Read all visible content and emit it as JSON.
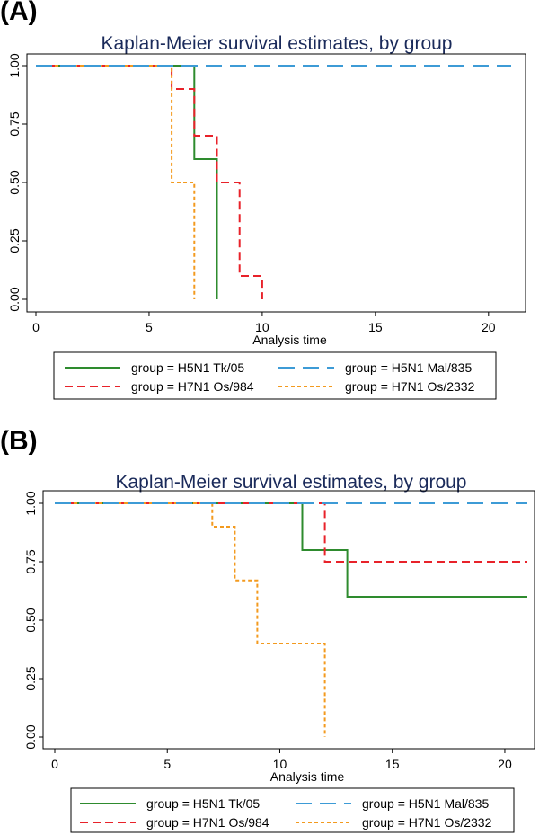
{
  "panels": [
    {
      "label": "(A)"
    },
    {
      "label": "(B)"
    }
  ],
  "chart_data": [
    {
      "type": "line",
      "step": true,
      "title": "Kaplan-Meier survival estimates, by group",
      "xlabel": "Analysis time",
      "ylabel": "",
      "xlim": [
        0,
        21
      ],
      "ylim": [
        0,
        1
      ],
      "xticks": [
        0,
        5,
        10,
        15,
        20
      ],
      "yticks": [
        "0.00",
        "0.25",
        "0.50",
        "0.75",
        "1.00"
      ],
      "legend": [
        "group = H5N1 Tk/05",
        "group = H5N1 Mal/835",
        "group = H7N1 Os/984",
        "group = H7N1 Os/2332"
      ],
      "series": [
        {
          "name": "group = H5N1 Tk/05",
          "color": "#2e8b2e",
          "dash": "solid",
          "points": [
            [
              0,
              1
            ],
            [
              7,
              1
            ],
            [
              7,
              0.6
            ],
            [
              8,
              0.6
            ],
            [
              8,
              0
            ]
          ]
        },
        {
          "name": "group = H5N1 Mal/835",
          "color": "#3d9bd6",
          "dash": "long",
          "points": [
            [
              0,
              1
            ],
            [
              21,
              1
            ]
          ]
        },
        {
          "name": "group = H7N1 Os/984",
          "color": "#e8222a",
          "dash": "medium",
          "points": [
            [
              0,
              1
            ],
            [
              6,
              1
            ],
            [
              6,
              0.9
            ],
            [
              7,
              0.9
            ],
            [
              7,
              0.7
            ],
            [
              8,
              0.7
            ],
            [
              8,
              0.5
            ],
            [
              9,
              0.5
            ],
            [
              9,
              0.1
            ],
            [
              10,
              0.1
            ],
            [
              10,
              0
            ]
          ]
        },
        {
          "name": "group = H7N1 Os/2332",
          "color": "#f39a1e",
          "dash": "short",
          "points": [
            [
              0,
              1
            ],
            [
              6,
              1
            ],
            [
              6,
              0.5
            ],
            [
              7,
              0.5
            ],
            [
              7,
              0
            ]
          ]
        }
      ]
    },
    {
      "type": "line",
      "step": true,
      "title": "Kaplan-Meier survival estimates, by group",
      "xlabel": "Analysis time",
      "ylabel": "",
      "xlim": [
        0,
        21
      ],
      "ylim": [
        0,
        1
      ],
      "xticks": [
        0,
        5,
        10,
        15,
        20
      ],
      "yticks": [
        "0.00",
        "0.25",
        "0.50",
        "0.75",
        "1.00"
      ],
      "legend": [
        "group = H5N1 Tk/05",
        "group = H5N1 Mal/835",
        "group = H7N1 Os/984",
        "group = H7N1 Os/2332"
      ],
      "series": [
        {
          "name": "group = H5N1 Tk/05",
          "color": "#2e8b2e",
          "dash": "solid",
          "points": [
            [
              0,
              1
            ],
            [
              11,
              1
            ],
            [
              11,
              0.8
            ],
            [
              13,
              0.8
            ],
            [
              13,
              0.6
            ],
            [
              21,
              0.6
            ]
          ]
        },
        {
          "name": "group = H5N1 Mal/835",
          "color": "#3d9bd6",
          "dash": "long",
          "points": [
            [
              0,
              1
            ],
            [
              21,
              1
            ]
          ]
        },
        {
          "name": "group = H7N1 Os/984",
          "color": "#e8222a",
          "dash": "medium",
          "points": [
            [
              0,
              1
            ],
            [
              12,
              1
            ],
            [
              12,
              0.75
            ],
            [
              21,
              0.75
            ]
          ]
        },
        {
          "name": "group = H7N1 Os/2332",
          "color": "#f39a1e",
          "dash": "short",
          "points": [
            [
              0,
              1
            ],
            [
              7,
              1
            ],
            [
              7,
              0.9
            ],
            [
              8,
              0.9
            ],
            [
              8,
              0.67
            ],
            [
              9,
              0.67
            ],
            [
              9,
              0.4
            ],
            [
              12,
              0.4
            ],
            [
              12,
              0
            ]
          ]
        }
      ]
    }
  ]
}
